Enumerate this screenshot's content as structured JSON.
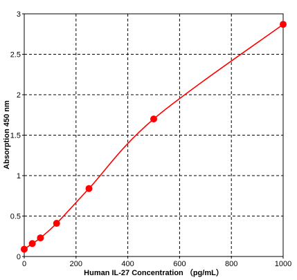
{
  "chart_data": {
    "type": "scatter",
    "title": "",
    "xlabel": "Human IL-27 Concentration （pg/mL）",
    "ylabel": "Absorption 450  nm",
    "xlim": [
      0,
      1000
    ],
    "ylim": [
      0,
      3
    ],
    "x_ticks": [
      "0",
      "200",
      "400",
      "600",
      "800",
      "1000"
    ],
    "y_ticks": [
      "0",
      "0.5",
      "1",
      "1.5",
      "2",
      "2.5",
      "3"
    ],
    "x_tick_values": [
      0,
      200,
      400,
      600,
      800,
      1000
    ],
    "y_tick_values": [
      0,
      0.5,
      1,
      1.5,
      2,
      2.5,
      3
    ],
    "grid": true,
    "series": [
      {
        "x": [
          0,
          31.25,
          62.5,
          125,
          250,
          500,
          1000
        ],
        "y": [
          0.09,
          0.16,
          0.23,
          0.41,
          0.84,
          1.7,
          2.87
        ],
        "fit_curve": true
      }
    ],
    "colors": {
      "series": "#ff0000",
      "grid": "#000000",
      "axis": "#000000"
    }
  }
}
